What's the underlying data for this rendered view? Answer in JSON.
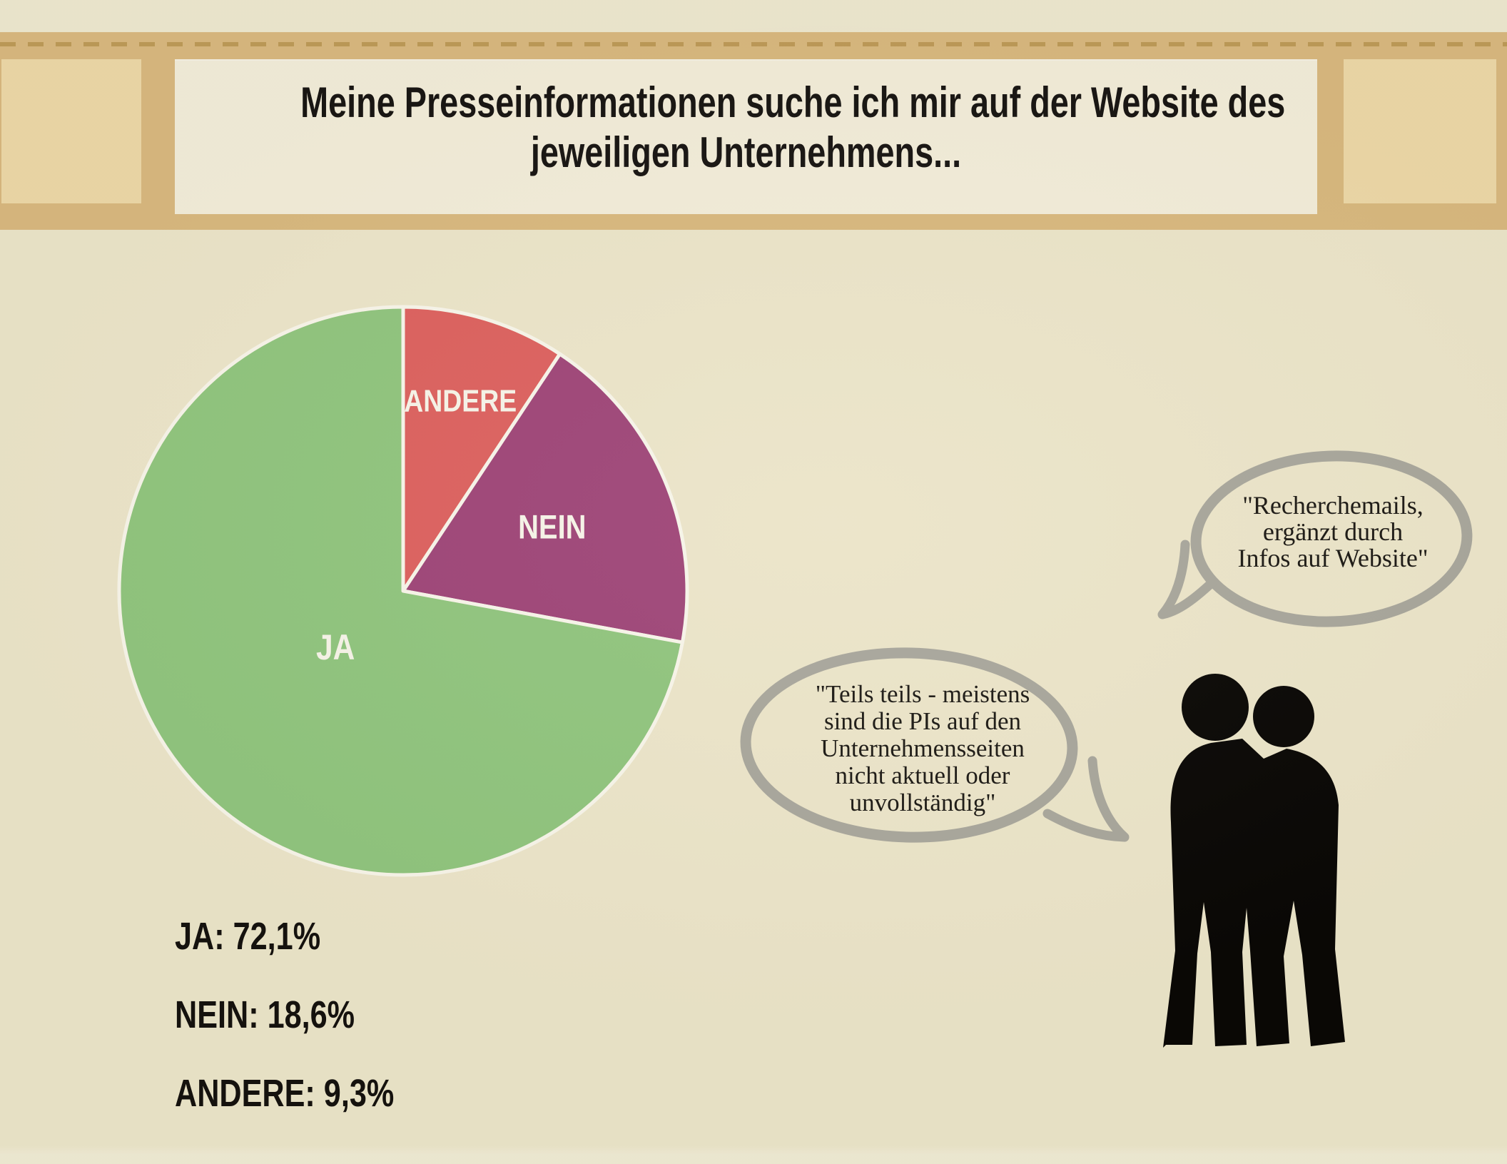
{
  "slide": {
    "title": {
      "lines": [
        "Meine Presseinformationen suche ich mir auf der Website des",
        "jeweiligen Unternehmens..."
      ]
    }
  },
  "chart_data": {
    "type": "pie",
    "title": "Meine Presseinformationen suche ich mir auf der Website des jeweiligen Unternehmens...",
    "unit": "%",
    "start_angle_deg": 0,
    "direction": "clockwise-from-12-oclock",
    "slices": [
      {
        "label": "ANDERE",
        "value": 9.3,
        "color": "#dc615e",
        "label_r": 0.7,
        "label_font": 44
      },
      {
        "label": "NEIN",
        "value": 18.6,
        "color": "#9e4577",
        "label_r": 0.57,
        "label_font": 47
      },
      {
        "label": "JA",
        "value": 72.1,
        "color": "#90c47d",
        "label_r": 0.31,
        "label_font": 50
      }
    ],
    "separator_color": "#f7f4e8",
    "legend_position": "bottom-left",
    "legend_items": [
      "JA: 72,1%",
      "NEIN: 18,6%",
      "ANDERE: 9,3%"
    ]
  },
  "quotes": {
    "right": {
      "lines": [
        "\"Recherchemails,",
        "ergänzt durch",
        "Infos auf Website\""
      ]
    },
    "left": {
      "lines": [
        "\"Teils teils - meistens",
        "sind die PIs auf den",
        "Unternehmensseiten",
        "nicht aktuell oder",
        "unvollständig\""
      ]
    }
  },
  "colors": {
    "background": "#ebe4c8",
    "band": "#d8b87e",
    "band_panel": "#ecd7a6",
    "title_panel": "#f2ecd8",
    "band_dash": "#bd9a58",
    "bubble_stroke": "#a8a69b",
    "silhouette": "#0a0805",
    "pie_ja": "#90c47d",
    "pie_nein": "#9e4577",
    "pie_andere": "#dc615e"
  }
}
